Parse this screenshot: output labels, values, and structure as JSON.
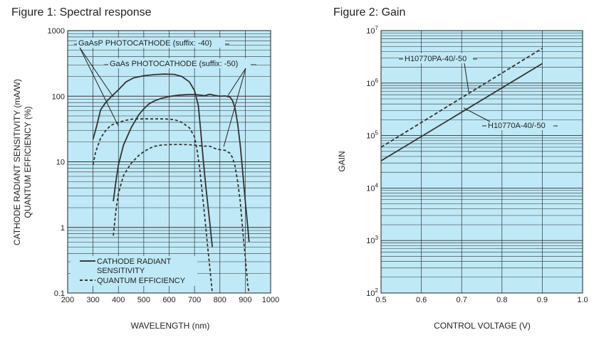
{
  "chart_data": [
    {
      "type": "line",
      "title": "Figure 1: Spectral response",
      "xlabel": "WAVELENGTH (nm)",
      "ylabel": [
        "CATHODE RADIANT SENSITIVITY (mA/W)",
        "QUANTUM EFFICIENCY (%)"
      ],
      "xlim": [
        200,
        1000
      ],
      "ylim": [
        0.1,
        1000
      ],
      "yscale": "log",
      "x_ticks": [
        "200",
        "300",
        "400",
        "500",
        "600",
        "700",
        "800",
        "900",
        "1000"
      ],
      "y_ticks": [
        "0.1",
        "1",
        "10",
        "100",
        "1000"
      ],
      "grid": true,
      "background": "#bfe9f7",
      "annotations": [
        "GaAsP PHOTOCATHODE (suffix: -40)",
        "GaAs PHOTOCATHODE (suffix: -50)"
      ],
      "legend": {
        "placement": "bottom-left",
        "entries": [
          {
            "label_lines": [
              "CATHODE RADIANT",
              "SENSITIVITY"
            ],
            "style": "solid"
          },
          {
            "label_lines": [
              "QUANTUM EFFICIENCY"
            ],
            "style": "dashed"
          }
        ]
      },
      "series": [
        {
          "style": "solid",
          "color": "#333333",
          "x": [
            300,
            315,
            330,
            350,
            370,
            400,
            430,
            460,
            500,
            540,
            580,
            620,
            650,
            680,
            700,
            715,
            725,
            735,
            745,
            760,
            770
          ],
          "y": [
            22,
            36,
            62,
            80,
            97,
            125,
            165,
            190,
            205,
            213,
            217,
            215,
            200,
            165,
            122,
            72,
            28,
            10,
            4,
            1.2,
            0.5
          ]
        },
        {
          "style": "solid",
          "color": "#333333",
          "x": [
            380,
            390,
            400,
            420,
            450,
            480,
            500,
            520,
            540,
            570,
            600,
            640,
            680,
            700,
            720,
            740,
            760,
            780,
            800,
            820,
            840,
            850,
            860,
            870,
            880,
            890,
            900,
            910,
            915
          ],
          "y": [
            2.5,
            5,
            9,
            18,
            33,
            52,
            64,
            76,
            84,
            93,
            99,
            104,
            106,
            106,
            104,
            102,
            107,
            103,
            100,
            101,
            97,
            85,
            65,
            38,
            18,
            7,
            2.5,
            1.0,
            0.6
          ]
        },
        {
          "style": "dashed",
          "color": "#333333",
          "x": [
            300,
            310,
            330,
            350,
            370,
            400,
            430,
            460,
            500,
            540,
            580,
            620,
            650,
            680,
            700,
            710,
            720,
            730,
            740,
            750,
            760,
            770
          ],
          "y": [
            9,
            14,
            23,
            30,
            36,
            40,
            43,
            45,
            45,
            45,
            45,
            44,
            40,
            33,
            24,
            15,
            8,
            3.5,
            1.5,
            0.6,
            0.25,
            0.1
          ]
        },
        {
          "style": "dashed",
          "color": "#333333",
          "x": [
            380,
            390,
            400,
            420,
            450,
            480,
            500,
            520,
            540,
            570,
            600,
            640,
            680,
            700,
            720,
            740,
            760,
            780,
            800,
            820,
            840,
            850,
            860,
            870,
            880,
            890,
            900,
            910,
            915
          ],
          "y": [
            0.75,
            1.8,
            3.3,
            6.2,
            9.5,
            12.5,
            14.3,
            15.8,
            17.2,
            18.0,
            18.3,
            18.4,
            18.2,
            18.0,
            17.6,
            17.3,
            17.3,
            16.0,
            15.3,
            15.0,
            13.5,
            11.5,
            8.5,
            5,
            2.5,
            0.9,
            0.35,
            0.13,
            0.1
          ]
        }
      ]
    },
    {
      "type": "line",
      "title": "Figure 2: Gain",
      "xlabel": "CONTROL VOLTAGE (V)",
      "ylabel": "GAIN",
      "xlim": [
        0.5,
        1.0
      ],
      "ylim": [
        100,
        10000000
      ],
      "yscale": "log",
      "x_ticks": [
        "0.5",
        "0.6",
        "0.7",
        "0.8",
        "0.9",
        "1.0"
      ],
      "y_ticks": [
        "10^2",
        "10^3",
        "10^4",
        "10^5",
        "10^6",
        "10^7"
      ],
      "grid": true,
      "background": "#bfe9f7",
      "series": [
        {
          "name": "H10770PA-40/-50",
          "style": "dashed",
          "color": "#333333",
          "x": [
            0.5,
            0.9
          ],
          "y": [
            60000,
            4600000
          ]
        },
        {
          "name": "H10770A-40/-50",
          "style": "solid",
          "color": "#333333",
          "x": [
            0.5,
            0.9
          ],
          "y": [
            33000,
            2350000
          ]
        }
      ]
    }
  ]
}
